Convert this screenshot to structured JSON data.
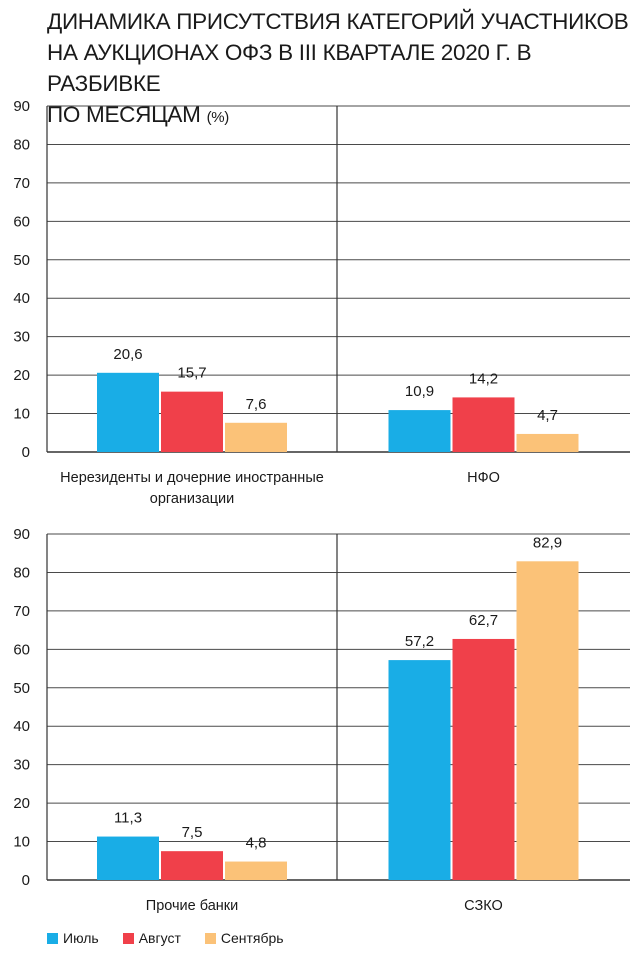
{
  "title_line1": "ДИНАМИКА ПРИСУТСТВИЯ КАТЕГОРИЙ УЧАСТНИКОВ",
  "title_line2": "НА АУКЦИОНАХ ОФЗ В III КВАРТАЛЕ 2020 Г. В РАЗБИВКЕ",
  "title_line3": "ПО МЕСЯЦАМ",
  "title_unit": "(%)",
  "colors": {
    "july": "#19ade6",
    "august": "#f0404a",
    "september": "#fbc278"
  },
  "legend": [
    {
      "label": "Июль",
      "color": "#19ade6"
    },
    {
      "label": "Август",
      "color": "#f0404a"
    },
    {
      "label": "Сентябрь",
      "color": "#fbc278"
    }
  ],
  "chart_data": [
    {
      "type": "bar",
      "ylim": [
        0,
        90
      ],
      "yticks": [
        "0",
        "10",
        "20",
        "30",
        "40",
        "50",
        "60",
        "70",
        "80",
        "90"
      ],
      "grid": true,
      "categories": [
        "Нерезиденты и дочерние иностранные организации",
        "НФО"
      ],
      "category_lines": [
        [
          "Нерезиденты и дочерние иностранные",
          "организации"
        ],
        [
          "НФО"
        ]
      ],
      "series": [
        {
          "name": "Июль",
          "values": [
            20.6,
            10.9
          ],
          "labels": [
            "20,6",
            "10,9"
          ]
        },
        {
          "name": "Август",
          "values": [
            15.7,
            14.2
          ],
          "labels": [
            "15,7",
            "14,2"
          ]
        },
        {
          "name": "Сентябрь",
          "values": [
            7.6,
            4.7
          ],
          "labels": [
            "7,6",
            "4,7"
          ]
        }
      ]
    },
    {
      "type": "bar",
      "ylim": [
        0,
        90
      ],
      "yticks": [
        "0",
        "10",
        "20",
        "30",
        "40",
        "50",
        "60",
        "70",
        "80",
        "90"
      ],
      "grid": true,
      "categories": [
        "Прочие банки",
        "СЗКО"
      ],
      "category_lines": [
        [
          "Прочие банки"
        ],
        [
          "СЗКО"
        ]
      ],
      "series": [
        {
          "name": "Июль",
          "values": [
            11.3,
            57.2
          ],
          "labels": [
            "11,3",
            "57,2"
          ]
        },
        {
          "name": "Август",
          "values": [
            7.5,
            62.7
          ],
          "labels": [
            "7,5",
            "62,7"
          ]
        },
        {
          "name": "Сентябрь",
          "values": [
            4.8,
            82.9
          ],
          "labels": [
            "4,8",
            "82,9"
          ]
        }
      ]
    }
  ]
}
